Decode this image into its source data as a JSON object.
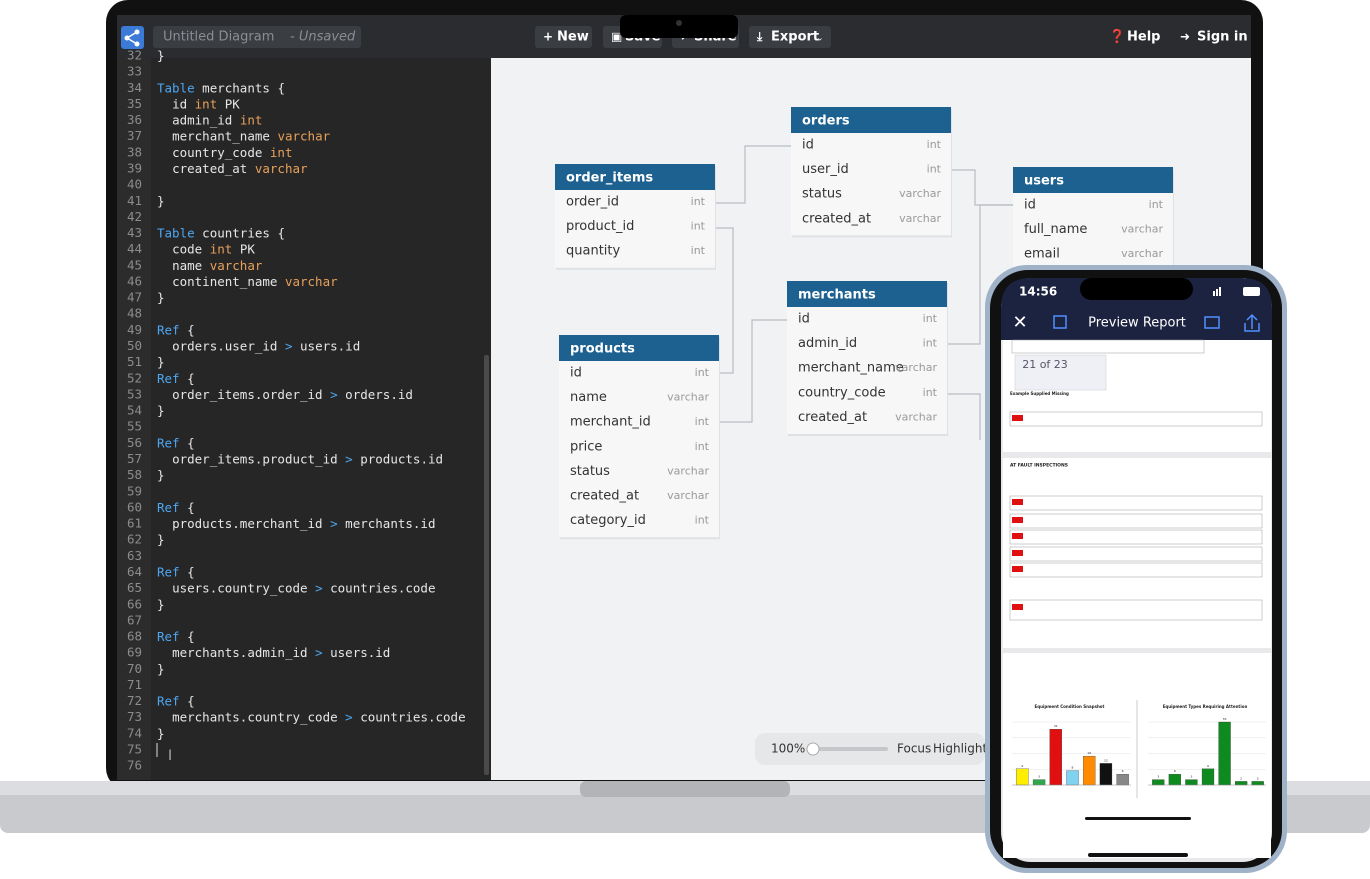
{
  "toolbar": {
    "diagram_name": "Untitled Diagram",
    "status": "- Unsaved",
    "buttons": [
      "New",
      "Save",
      "Share",
      "Export"
    ],
    "help": "Help",
    "sign_in": "Sign in"
  },
  "editor": {
    "lines": [
      {
        "n": 32,
        "code": "}"
      },
      {
        "n": 33
      },
      {
        "n": 34,
        "code": "Table merchants {"
      },
      {
        "n": 35,
        "code": "  id int PK"
      },
      {
        "n": 36,
        "code": "  admin_id int"
      },
      {
        "n": 37,
        "code": "  merchant_name varchar"
      },
      {
        "n": 38,
        "code": "  country_code int"
      },
      {
        "n": 39,
        "code": "  created_at varchar"
      },
      {
        "n": 40
      },
      {
        "n": 41,
        "code": "}"
      },
      {
        "n": 42
      },
      {
        "n": 43,
        "code": "Table countries {"
      },
      {
        "n": 44,
        "code": "  code int PK"
      },
      {
        "n": 45,
        "code": "  name varchar"
      },
      {
        "n": 46,
        "code": "  continent_name varchar"
      },
      {
        "n": 47,
        "code": "}"
      },
      {
        "n": 48
      },
      {
        "n": 49,
        "code": "Ref {"
      },
      {
        "n": 50,
        "code": "  orders.user_id > users.id"
      },
      {
        "n": 51,
        "code": "}"
      },
      {
        "n": 52,
        "code": "Ref {"
      },
      {
        "n": 53,
        "code": "  order_items.order_id > orders.id"
      },
      {
        "n": 54,
        "code": "}"
      },
      {
        "n": 55
      },
      {
        "n": 56,
        "code": "Ref {"
      },
      {
        "n": 57,
        "code": "  order_items.product_id > products.id"
      },
      {
        "n": 58,
        "code": "}"
      },
      {
        "n": 59
      },
      {
        "n": 60,
        "code": "Ref {"
      },
      {
        "n": 61,
        "code": "  products.merchant_id > merchants.id"
      },
      {
        "n": 62,
        "code": "}"
      },
      {
        "n": 63
      },
      {
        "n": 64,
        "code": "Ref {"
      },
      {
        "n": 65,
        "code": "  users.country_code > countries.code"
      },
      {
        "n": 66,
        "code": "}"
      },
      {
        "n": 67
      },
      {
        "n": 68,
        "code": "Ref {"
      },
      {
        "n": 69,
        "code": "  merchants.admin_id > users.id"
      },
      {
        "n": 70,
        "code": "}"
      },
      {
        "n": 71
      },
      {
        "n": 72,
        "code": "Ref {"
      },
      {
        "n": 73,
        "code": "  merchants.country_code > countries.code"
      },
      {
        "n": 74,
        "code": "}"
      },
      {
        "n": 75
      },
      {
        "n": 76
      }
    ]
  },
  "diagram": {
    "tables": [
      {
        "name": "orders",
        "fields": [
          [
            "id",
            "int"
          ],
          [
            "user_id",
            "int"
          ],
          [
            "status",
            "varchar"
          ],
          [
            "created_at",
            "varchar"
          ]
        ]
      },
      {
        "name": "order_items",
        "fields": [
          [
            "order_id",
            "int"
          ],
          [
            "product_id",
            "int"
          ],
          [
            "quantity",
            "int"
          ]
        ]
      },
      {
        "name": "users",
        "fields": [
          [
            "id",
            "int"
          ],
          [
            "full_name",
            "varchar"
          ],
          [
            "email",
            "varchar"
          ]
        ]
      },
      {
        "name": "merchants",
        "fields": [
          [
            "id",
            "int"
          ],
          [
            "admin_id",
            "int"
          ],
          [
            "merchant_name",
            "varchar"
          ],
          [
            "country_code",
            "int"
          ],
          [
            "created_at",
            "varchar"
          ]
        ]
      },
      {
        "name": "products",
        "fields": [
          [
            "id",
            "int"
          ],
          [
            "name",
            "varchar"
          ],
          [
            "merchant_id",
            "int"
          ],
          [
            "price",
            "int"
          ],
          [
            "status",
            "varchar"
          ],
          [
            "created_at",
            "varchar"
          ],
          [
            "category_id",
            "int"
          ]
        ]
      }
    ],
    "zoom": {
      "level": "100%",
      "focus": "Focus",
      "highlight": "Highlight"
    }
  },
  "phone": {
    "time": "14:56",
    "title": "Preview Report",
    "page_indicator": "21 of 23",
    "report": {
      "section": "Example Supplied Missing",
      "heading": "AT FAULT INSPECTIONS",
      "charts": [
        {
          "type": "bar",
          "title": "Equipment Condition Snapshot",
          "ylim": [
            0,
            35
          ],
          "values": [
            9,
            3,
            31,
            8,
            16,
            12,
            6
          ],
          "colors": [
            "#ffee00",
            "#2ea84a",
            "#e01010",
            "#7fd3f0",
            "#ff8c00",
            "#111111",
            "#888888"
          ]
        },
        {
          "type": "bar",
          "title": "Equipment Types Requiring Attention",
          "ylim": [
            0,
            35
          ],
          "values": [
            3,
            6,
            3,
            9,
            35,
            2,
            2
          ],
          "colors": [
            "#0f8a1e"
          ]
        }
      ]
    }
  }
}
